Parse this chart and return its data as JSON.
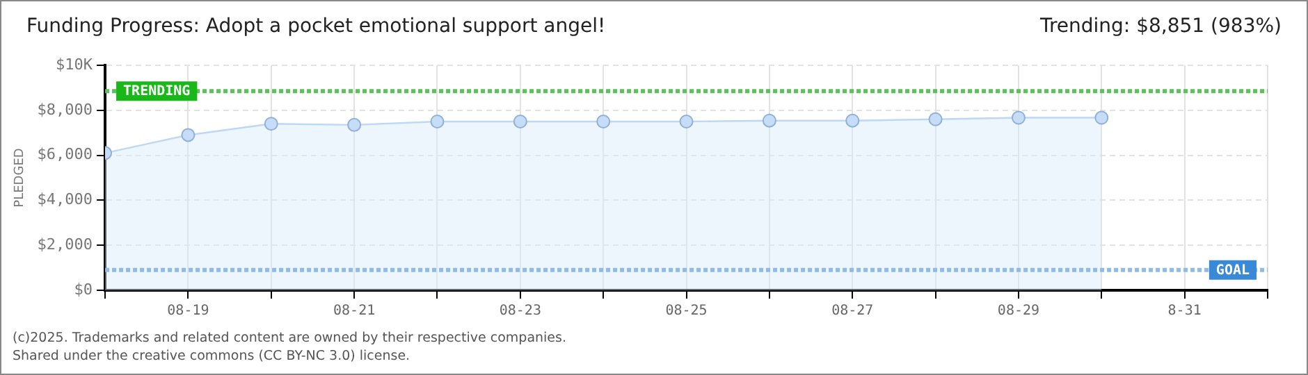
{
  "chart_data": {
    "type": "area",
    "title": "Funding Progress: Adopt a pocket emotional support angel!",
    "ylabel": "PLEDGED",
    "annotations": [
      "Trending: $8,851 (983%)",
      "(c)2025. Trademarks and related content are owned by their respective companies.",
      "Shared under the creative commons (CC BY-NC 3.0) license."
    ],
    "x": [
      "--08-18",
      "--08-19",
      "--08-20",
      "--08-21",
      "--08-22",
      "--08-23",
      "--08-24",
      "--08-25",
      "--08-26",
      "--08-27",
      "--08-28",
      "--08-29",
      "--08-30"
    ],
    "series": [
      {
        "color": "#bcd8f5",
        "values": [
          6100,
          6900,
          7400,
          7350,
          7500,
          7500,
          7500,
          7500,
          7540,
          7540,
          7600,
          7670,
          7670
        ]
      }
    ],
    "xlim": [
      "--08-18",
      "--09-01"
    ],
    "xticks": [
      {
        "value": "--08-18",
        "label": null
      },
      {
        "value": "--08-19",
        "label": "08-19"
      },
      {
        "value": "--08-20",
        "label": null
      },
      {
        "value": "--08-21",
        "label": "08-21"
      },
      {
        "value": "--08-22",
        "label": null
      },
      {
        "value": "--08-23",
        "label": "08-23"
      },
      {
        "value": "--08-24",
        "label": null
      },
      {
        "value": "--08-25",
        "label": "08-25"
      },
      {
        "value": "--08-26",
        "label": null
      },
      {
        "value": "--08-27",
        "label": "08-27"
      },
      {
        "value": "--08-28",
        "label": null
      },
      {
        "value": "--08-29",
        "label": "08-29"
      },
      {
        "value": "--08-30",
        "label": null
      },
      {
        "value": "--08-31",
        "label": "8-31"
      },
      {
        "value": "--09-01",
        "label": null
      }
    ],
    "ylim": [
      0,
      10000
    ],
    "yticks": [
      {
        "value": 0,
        "label": "$0"
      },
      {
        "value": 2000,
        "label": "$2,000"
      },
      {
        "value": 4000,
        "label": "$4,000"
      },
      {
        "value": 6000,
        "label": "$6,000"
      },
      {
        "value": 8000,
        "label": "$8,000"
      },
      {
        "value": 10000,
        "label": "$10K"
      }
    ],
    "ref_lines": [
      {
        "axis": "y",
        "value": 8851,
        "label": "TRENDING",
        "color": "#5cc05c",
        "line_style": "dotted"
      },
      {
        "axis": "y",
        "value": 900,
        "label": "GOAL",
        "color": "#8fbbe8",
        "line_style": "dotted"
      }
    ],
    "grid": true,
    "marker": "circle",
    "legend": false
  }
}
